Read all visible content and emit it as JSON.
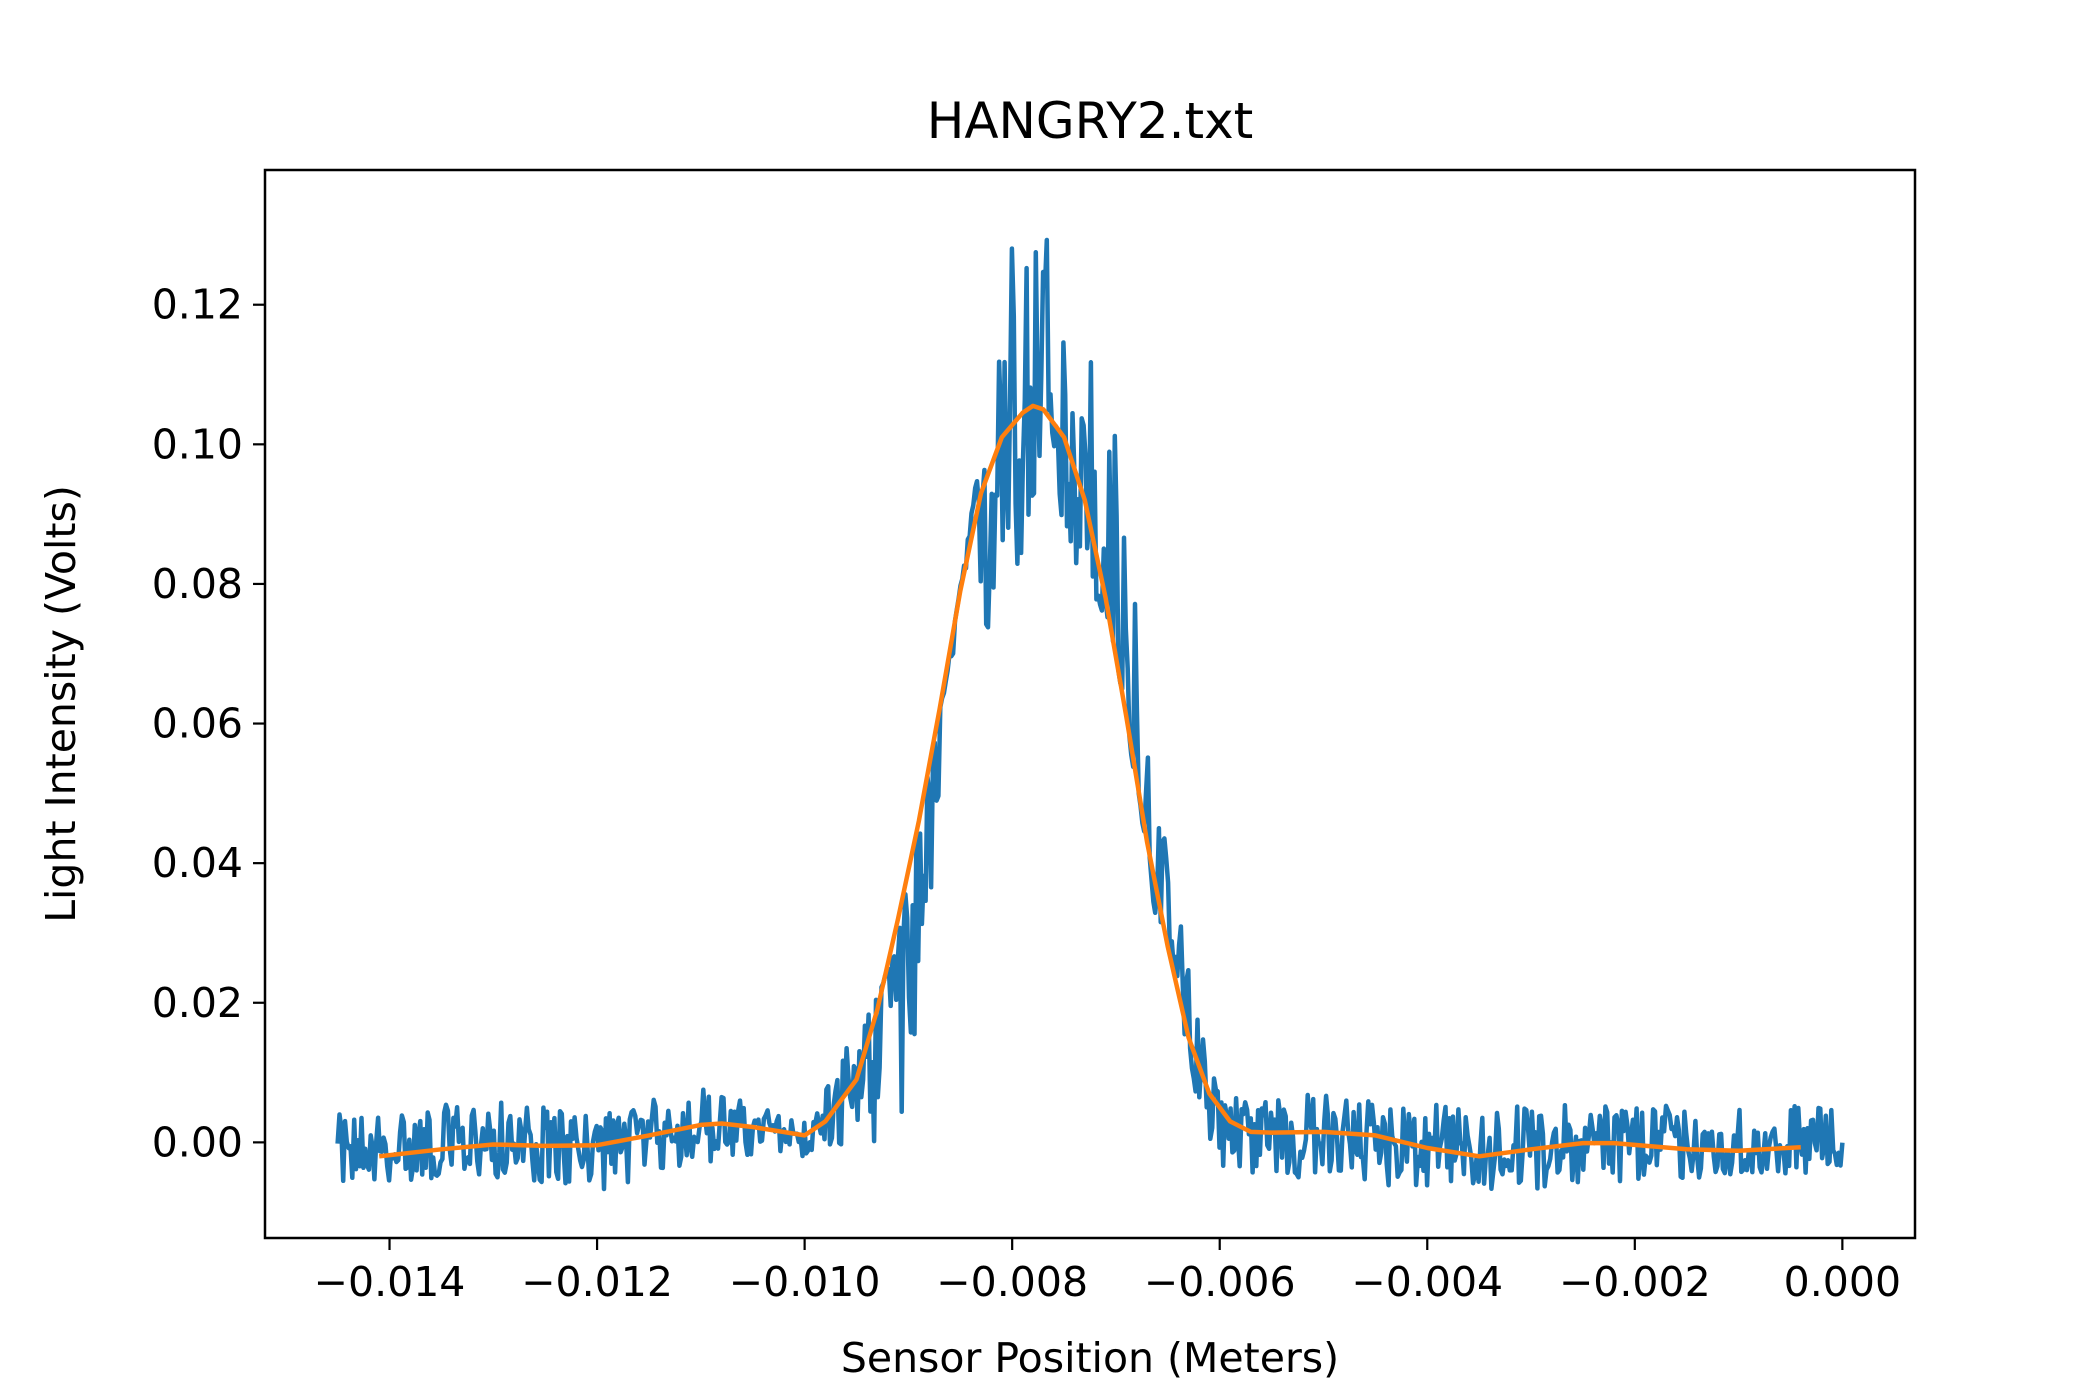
{
  "chart_data": {
    "type": "line",
    "title": "HANGRY2.txt",
    "xlabel": "Sensor Position (Meters)",
    "ylabel": "Light Intensity (Volts)",
    "xlim": [
      -0.0152,
      0.0007
    ],
    "ylim": [
      -0.0137,
      0.1393
    ],
    "x_ticks": [
      -0.014,
      -0.012,
      -0.01,
      -0.008,
      -0.006,
      -0.004,
      -0.002,
      0.0
    ],
    "x_tick_labels": [
      "−0.014",
      "−0.012",
      "−0.010",
      "−0.008",
      "−0.006",
      "−0.004",
      "−0.002",
      "0.000"
    ],
    "y_ticks": [
      0.0,
      0.02,
      0.04,
      0.06,
      0.08,
      0.1,
      0.12
    ],
    "y_tick_labels": [
      "0.00",
      "0.02",
      "0.04",
      "0.06",
      "0.08",
      "0.10",
      "0.12"
    ],
    "grid": false,
    "series": [
      {
        "role": "raw",
        "color": "#1f77b4",
        "x_range": [
          -0.0145,
          0.0
        ],
        "points": 820,
        "noise_envelope": [
          [
            -0.0145,
            -0.006,
            0.004
          ],
          [
            -0.013,
            -0.005,
            0.006
          ],
          [
            -0.012,
            -0.007,
            0.004
          ],
          [
            -0.011,
            -0.003,
            0.008
          ],
          [
            -0.01,
            -0.002,
            0.003
          ],
          [
            -0.009,
            0.001,
            0.029
          ],
          [
            -0.0085,
            0.058,
            0.08
          ],
          [
            -0.008,
            0.08,
            0.13
          ],
          [
            -0.0076,
            0.088,
            0.133
          ],
          [
            -0.007,
            0.07,
            0.102
          ],
          [
            -0.0065,
            0.02,
            0.04
          ],
          [
            -0.006,
            -0.004,
            0.007
          ],
          [
            -0.005,
            -0.006,
            0.007
          ],
          [
            -0.0035,
            -0.007,
            0.005
          ],
          [
            -0.002,
            -0.006,
            0.006
          ],
          [
            0.0,
            -0.004,
            0.005
          ]
        ]
      },
      {
        "role": "smoothed",
        "color": "#ff7f0e",
        "x": [
          -0.0141,
          -0.0135,
          -0.013,
          -0.0125,
          -0.012,
          -0.0115,
          -0.011,
          -0.0108,
          -0.0105,
          -0.01,
          -0.0098,
          -0.0095,
          -0.0093,
          -0.0091,
          -0.0089,
          -0.0087,
          -0.0085,
          -0.0083,
          -0.0081,
          -0.0079,
          -0.0078,
          -0.0077,
          -0.0075,
          -0.0073,
          -0.0071,
          -0.0069,
          -0.0067,
          -0.0065,
          -0.0063,
          -0.0061,
          -0.0059,
          -0.0057,
          -0.0055,
          -0.005,
          -0.0045,
          -0.004,
          -0.0035,
          -0.003,
          -0.0025,
          -0.0022,
          -0.0015,
          -0.001,
          -0.0004
        ],
        "y": [
          -0.002,
          -0.001,
          -0.0003,
          -0.0005,
          -0.0004,
          0.001,
          0.0025,
          0.0027,
          0.0022,
          0.001,
          0.003,
          0.009,
          0.019,
          0.032,
          0.046,
          0.062,
          0.079,
          0.093,
          0.101,
          0.1045,
          0.1055,
          0.105,
          0.101,
          0.092,
          0.078,
          0.061,
          0.043,
          0.028,
          0.015,
          0.007,
          0.003,
          0.0015,
          0.0014,
          0.0015,
          0.001,
          -0.0008,
          -0.002,
          -0.001,
          -0.0001,
          -0.0001,
          -0.001,
          -0.0012,
          -0.0007
        ]
      }
    ]
  }
}
